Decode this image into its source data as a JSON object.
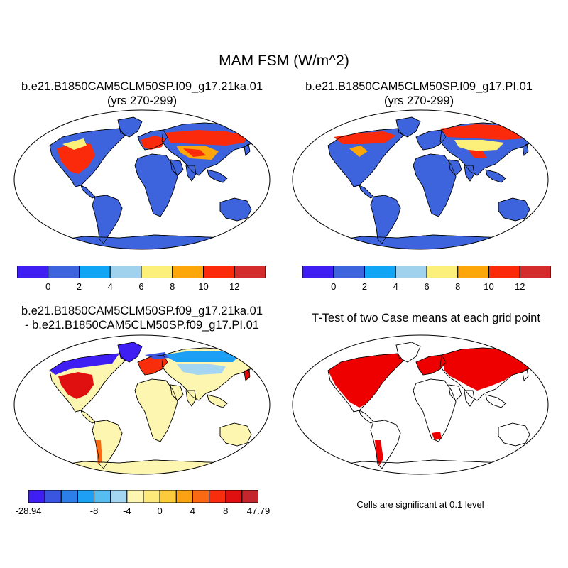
{
  "figure": {
    "title": "MAM FSM (W/m^2)"
  },
  "panels": {
    "top_left": {
      "title_line1": "b.e21.B1850CAM5CLM50SP.f09_g17.21ka.01",
      "title_line2": "(yrs 270-299)"
    },
    "top_right": {
      "title_line1": "b.e21.B1850CAM5CLM50SP.f09_g17.PI.01",
      "title_line2": "(yrs 270-299)"
    },
    "bottom_left": {
      "title_line1": "b.e21.B1850CAM5CLM50SP.f09_g17.21ka.01",
      "title_line2": "- b.e21.B1850CAM5CLM50SP.f09_g17.PI.01"
    },
    "bottom_right": {
      "title_line1": "T-Test of two Case means at each grid point",
      "note": "Cells are significant at 0.1 level"
    }
  },
  "colorbars": {
    "mean": {
      "colors": [
        "#3e1ef2",
        "#3d64dc",
        "#10a5f5",
        "#a0d2ee",
        "#fdf07a",
        "#fca60a",
        "#fa2a0a",
        "#d42c2c"
      ],
      "labels": [
        "0",
        "2",
        "4",
        "6",
        "8",
        "10",
        "12"
      ]
    },
    "diff": {
      "colors": [
        "#3e1ef2",
        "#3a55e0",
        "#2c7fe8",
        "#1c9ff4",
        "#55bdf0",
        "#a4d6f1",
        "#fdf6b0",
        "#fde97a",
        "#fccb3c",
        "#fba114",
        "#fb6a12",
        "#f72d0c",
        "#e01010",
        "#c4262c"
      ],
      "labels": [
        "-28.94",
        "-8",
        "-4",
        "0",
        "4",
        "8",
        "47.79"
      ]
    }
  },
  "colors": {
    "ocean_bg": "#ffffff",
    "land_mean": "#3d64dc",
    "land_diff": "#fdf6b0",
    "significant": "#ee0000"
  }
}
